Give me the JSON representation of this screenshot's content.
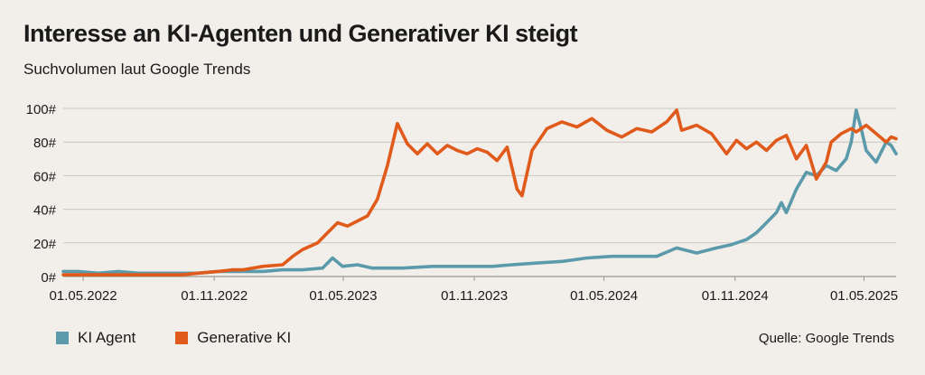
{
  "title": "Interesse an KI-Agenten und Generativer KI steigt",
  "subtitle": "Suchvolumen laut Google Trends",
  "source": "Quelle: Google Trends",
  "legend": [
    {
      "name": "KI Agent",
      "color": "#5b9aab"
    },
    {
      "name": "Generative KI",
      "color": "#e05a1c"
    }
  ],
  "chart_data": {
    "type": "line",
    "ylim": [
      0,
      100
    ],
    "yticks": [
      {
        "value": 0,
        "label": "0#"
      },
      {
        "value": 20,
        "label": "20#"
      },
      {
        "value": 40,
        "label": "40#"
      },
      {
        "value": 60,
        "label": "60#"
      },
      {
        "value": 80,
        "label": "80#"
      },
      {
        "value": 100,
        "label": "100#"
      }
    ],
    "xticks": [
      "01.05.2022",
      "01.11.2022",
      "01.05.2023",
      "01.11.2023",
      "01.05.2024",
      "01.11.2024",
      "01.05.2025"
    ],
    "x_range": [
      "2022-04-03",
      "2025-06-15"
    ],
    "grid": true,
    "legend_position": "bottom-left",
    "series": [
      {
        "name": "KI Agent",
        "color": "#5b9aab",
        "points": [
          [
            "2022-04-03",
            3
          ],
          [
            "2022-04-24",
            3
          ],
          [
            "2022-05-22",
            2
          ],
          [
            "2022-06-19",
            3
          ],
          [
            "2022-07-17",
            2
          ],
          [
            "2022-08-28",
            2
          ],
          [
            "2022-10-09",
            2
          ],
          [
            "2022-11-06",
            3
          ],
          [
            "2022-12-04",
            3
          ],
          [
            "2023-01-08",
            3
          ],
          [
            "2023-02-05",
            4
          ],
          [
            "2023-03-05",
            4
          ],
          [
            "2023-04-02",
            5
          ],
          [
            "2023-04-16",
            11
          ],
          [
            "2023-04-30",
            6
          ],
          [
            "2023-05-21",
            7
          ],
          [
            "2023-06-11",
            5
          ],
          [
            "2023-07-23",
            5
          ],
          [
            "2023-09-03",
            6
          ],
          [
            "2023-10-15",
            6
          ],
          [
            "2023-11-26",
            6
          ],
          [
            "2023-12-24",
            7
          ],
          [
            "2024-01-28",
            8
          ],
          [
            "2024-03-03",
            9
          ],
          [
            "2024-04-07",
            11
          ],
          [
            "2024-05-12",
            12
          ],
          [
            "2024-06-16",
            12
          ],
          [
            "2024-07-14",
            12
          ],
          [
            "2024-08-11",
            17
          ],
          [
            "2024-09-08",
            14
          ],
          [
            "2024-10-06",
            17
          ],
          [
            "2024-10-27",
            19
          ],
          [
            "2024-11-17",
            22
          ],
          [
            "2024-12-01",
            26
          ],
          [
            "2024-12-15",
            32
          ],
          [
            "2024-12-29",
            38
          ],
          [
            "2025-01-05",
            44
          ],
          [
            "2025-01-12",
            38
          ],
          [
            "2025-01-26",
            52
          ],
          [
            "2025-02-09",
            62
          ],
          [
            "2025-02-23",
            60
          ],
          [
            "2025-03-09",
            66
          ],
          [
            "2025-03-23",
            63
          ],
          [
            "2025-04-06",
            70
          ],
          [
            "2025-04-13",
            80
          ],
          [
            "2025-04-20",
            99
          ],
          [
            "2025-04-27",
            88
          ],
          [
            "2025-05-04",
            75
          ],
          [
            "2025-05-18",
            68
          ],
          [
            "2025-06-01",
            80
          ],
          [
            "2025-06-08",
            78
          ],
          [
            "2025-06-15",
            73
          ]
        ]
      },
      {
        "name": "Generative KI",
        "color": "#e05a1c",
        "points": [
          [
            "2022-04-03",
            1
          ],
          [
            "2022-05-01",
            1
          ],
          [
            "2022-06-26",
            1
          ],
          [
            "2022-08-07",
            1
          ],
          [
            "2022-09-18",
            1
          ],
          [
            "2022-10-09",
            2
          ],
          [
            "2022-11-06",
            3
          ],
          [
            "2022-11-27",
            4
          ],
          [
            "2022-12-11",
            4
          ],
          [
            "2023-01-08",
            6
          ],
          [
            "2023-02-05",
            7
          ],
          [
            "2023-02-19",
            12
          ],
          [
            "2023-03-05",
            16
          ],
          [
            "2023-03-26",
            20
          ],
          [
            "2023-04-09",
            26
          ],
          [
            "2023-04-23",
            32
          ],
          [
            "2023-05-07",
            30
          ],
          [
            "2023-05-21",
            33
          ],
          [
            "2023-06-04",
            36
          ],
          [
            "2023-06-18",
            46
          ],
          [
            "2023-07-02",
            66
          ],
          [
            "2023-07-16",
            91
          ],
          [
            "2023-07-30",
            79
          ],
          [
            "2023-08-13",
            73
          ],
          [
            "2023-08-27",
            79
          ],
          [
            "2023-09-10",
            73
          ],
          [
            "2023-09-24",
            78
          ],
          [
            "2023-10-08",
            75
          ],
          [
            "2023-10-22",
            73
          ],
          [
            "2023-11-05",
            76
          ],
          [
            "2023-11-19",
            74
          ],
          [
            "2023-12-03",
            69
          ],
          [
            "2023-12-17",
            77
          ],
          [
            "2023-12-31",
            52
          ],
          [
            "2024-01-07",
            48
          ],
          [
            "2024-01-21",
            75
          ],
          [
            "2024-02-11",
            88
          ],
          [
            "2024-03-03",
            92
          ],
          [
            "2024-03-24",
            89
          ],
          [
            "2024-04-14",
            94
          ],
          [
            "2024-05-05",
            87
          ],
          [
            "2024-05-26",
            83
          ],
          [
            "2024-06-16",
            88
          ],
          [
            "2024-07-07",
            86
          ],
          [
            "2024-07-28",
            92
          ],
          [
            "2024-08-11",
            99
          ],
          [
            "2024-08-18",
            87
          ],
          [
            "2024-09-08",
            90
          ],
          [
            "2024-09-29",
            85
          ],
          [
            "2024-10-20",
            73
          ],
          [
            "2024-11-03",
            81
          ],
          [
            "2024-11-17",
            76
          ],
          [
            "2024-12-01",
            80
          ],
          [
            "2024-12-15",
            75
          ],
          [
            "2024-12-29",
            81
          ],
          [
            "2025-01-12",
            84
          ],
          [
            "2025-01-26",
            70
          ],
          [
            "2025-02-09",
            78
          ],
          [
            "2025-02-23",
            58
          ],
          [
            "2025-03-09",
            68
          ],
          [
            "2025-03-16",
            80
          ],
          [
            "2025-03-30",
            85
          ],
          [
            "2025-04-13",
            88
          ],
          [
            "2025-04-20",
            86
          ],
          [
            "2025-05-04",
            90
          ],
          [
            "2025-05-18",
            85
          ],
          [
            "2025-06-01",
            80
          ],
          [
            "2025-06-08",
            83
          ],
          [
            "2025-06-15",
            82
          ]
        ]
      }
    ]
  }
}
